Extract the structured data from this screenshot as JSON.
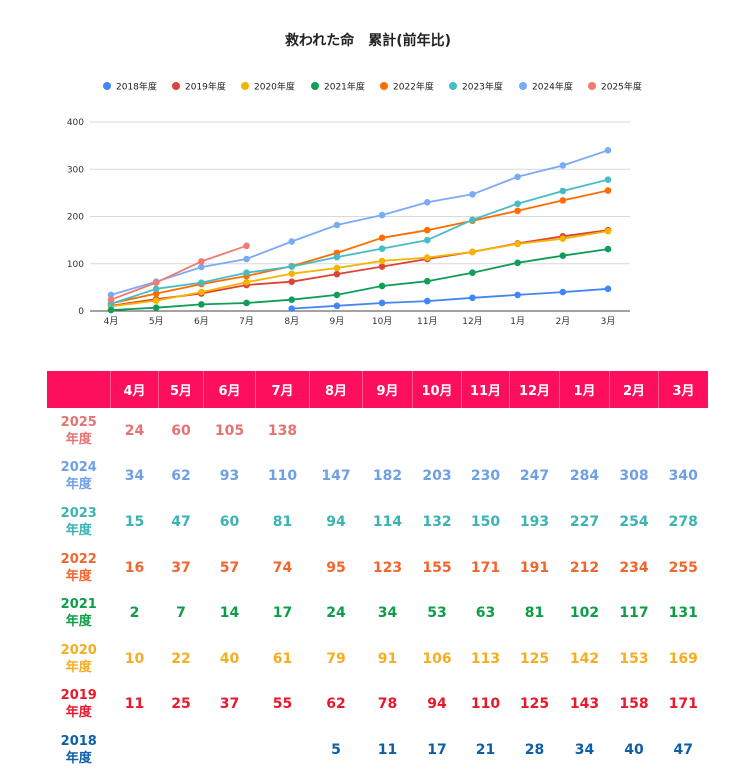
{
  "chart_data": {
    "type": "line",
    "title": "救われた命　累計(前年比)",
    "categories": [
      "4月",
      "5月",
      "6月",
      "7月",
      "8月",
      "9月",
      "10月",
      "11月",
      "12月",
      "1月",
      "2月",
      "3月"
    ],
    "ylim": [
      0,
      400
    ],
    "yticks": [
      0,
      100,
      200,
      300,
      400
    ],
    "grid": true,
    "legend_position": "top",
    "series": [
      {
        "name": "2018年度",
        "color": "#4285f4",
        "values": [
          null,
          null,
          null,
          null,
          5,
          11,
          17,
          21,
          28,
          34,
          40,
          47
        ]
      },
      {
        "name": "2019年度",
        "color": "#db4437",
        "values": [
          11,
          25,
          37,
          55,
          62,
          78,
          94,
          110,
          125,
          143,
          158,
          171
        ]
      },
      {
        "name": "2020年度",
        "color": "#f4b400",
        "values": [
          10,
          22,
          40,
          61,
          79,
          91,
          106,
          113,
          125,
          142,
          153,
          169
        ]
      },
      {
        "name": "2021年度",
        "color": "#0f9d58",
        "values": [
          2,
          7,
          14,
          17,
          24,
          34,
          53,
          63,
          81,
          102,
          117,
          131
        ]
      },
      {
        "name": "2022年度",
        "color": "#ff6d01",
        "values": [
          16,
          37,
          57,
          74,
          95,
          123,
          155,
          171,
          191,
          212,
          234,
          255
        ]
      },
      {
        "name": "2023年度",
        "color": "#46bdc6",
        "values": [
          15,
          47,
          60,
          81,
          94,
          114,
          132,
          150,
          193,
          227,
          254,
          278
        ]
      },
      {
        "name": "2024年度",
        "color": "#7baaf7",
        "values": [
          34,
          62,
          93,
          110,
          147,
          182,
          203,
          230,
          247,
          284,
          308,
          340
        ]
      },
      {
        "name": "2025年度",
        "color": "#f07b72",
        "values": [
          24,
          60,
          105,
          138,
          null,
          null,
          null,
          null,
          null,
          null,
          null,
          null
        ]
      }
    ]
  },
  "table": {
    "header_color": "#fe0f5e",
    "months": [
      "4月",
      "5月",
      "6月",
      "7月",
      "8月",
      "9月",
      "10月",
      "11月",
      "12月",
      "1月",
      "2月",
      "3月"
    ],
    "rows": [
      {
        "year": "2025",
        "suffix": "年度",
        "color": "#e57373",
        "values": [
          "24",
          "60",
          "105",
          "138",
          "",
          "",
          "",
          "",
          "",
          "",
          "",
          ""
        ]
      },
      {
        "year": "2024",
        "suffix": "年度",
        "color": "#6fa0e4",
        "values": [
          "34",
          "62",
          "93",
          "110",
          "147",
          "182",
          "203",
          "230",
          "247",
          "284",
          "308",
          "340"
        ]
      },
      {
        "year": "2023",
        "suffix": "年度",
        "color": "#3bb3b3",
        "values": [
          "15",
          "47",
          "60",
          "81",
          "94",
          "114",
          "132",
          "150",
          "193",
          "227",
          "254",
          "278"
        ]
      },
      {
        "year": "2022",
        "suffix": "年度",
        "color": "#f2652c",
        "values": [
          "16",
          "37",
          "57",
          "74",
          "95",
          "123",
          "155",
          "171",
          "191",
          "212",
          "234",
          "255"
        ]
      },
      {
        "year": "2021",
        "suffix": "年度",
        "color": "#0e9d47",
        "values": [
          "2",
          "7",
          "14",
          "17",
          "24",
          "34",
          "53",
          "63",
          "81",
          "102",
          "117",
          "131"
        ]
      },
      {
        "year": "2020",
        "suffix": "年度",
        "color": "#f5ad22",
        "values": [
          "10",
          "22",
          "40",
          "61",
          "79",
          "91",
          "106",
          "113",
          "125",
          "142",
          "153",
          "169"
        ]
      },
      {
        "year": "2019",
        "suffix": "年度",
        "color": "#e8192c",
        "values": [
          "11",
          "25",
          "37",
          "55",
          "62",
          "78",
          "94",
          "110",
          "125",
          "143",
          "158",
          "171"
        ]
      },
      {
        "year": "2018",
        "suffix": "年度",
        "color": "#0d5fa8",
        "values": [
          "",
          "",
          "",
          "",
          "5",
          "11",
          "17",
          "21",
          "28",
          "34",
          "40",
          "47"
        ]
      }
    ]
  }
}
